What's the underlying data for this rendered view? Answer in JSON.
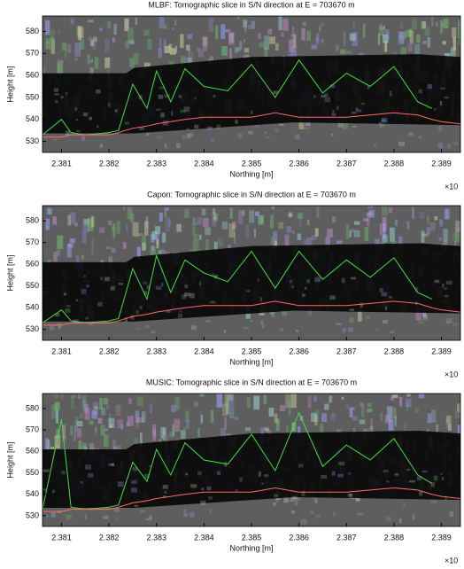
{
  "chart_data": [
    {
      "type": "line",
      "title": "MLBF: Tomographic slice in S/N direction at E = 703670 m",
      "x_label": "Northing [m]",
      "y_label": "Height [m]",
      "x_exponent_label": "×10",
      "x": [
        2.3806,
        2.381,
        2.3812,
        2.3815,
        2.382,
        2.3822,
        2.3825,
        2.3828,
        2.383,
        2.3833,
        2.3836,
        2.384,
        2.3845,
        2.385,
        2.3855,
        2.386,
        2.3865,
        2.387,
        2.3875,
        2.388,
        2.3885,
        2.3888,
        2.389,
        2.3894
      ],
      "series": [
        {
          "color": "#44dd44",
          "values": [
            533,
            540,
            534,
            533,
            534,
            535,
            556,
            545,
            562,
            548,
            563,
            555,
            553,
            565,
            550,
            567,
            552,
            561,
            555,
            564,
            548,
            545,
            null,
            null
          ]
        },
        {
          "color": "#ff6a6a",
          "values": [
            532,
            532,
            533,
            533,
            533,
            534,
            536,
            537,
            538,
            539,
            540,
            541,
            541,
            541,
            543,
            541,
            541,
            541,
            542,
            543,
            542,
            540,
            539,
            538
          ]
        }
      ],
      "xlim": [
        2.3806,
        2.3894
      ],
      "ylim": [
        525,
        587
      ],
      "xticks": [
        2.381,
        2.382,
        2.383,
        2.384,
        2.385,
        2.386,
        2.387,
        2.388,
        2.389
      ],
      "yticks": [
        530,
        540,
        550,
        560,
        570,
        580
      ]
    },
    {
      "type": "line",
      "title": "Capon: Tomographic slice in S/N direction at E = 703670 m",
      "x_label": "Northing [m]",
      "y_label": "Height [m]",
      "x_exponent_label": "×10",
      "x": [
        2.3806,
        2.381,
        2.3812,
        2.3815,
        2.382,
        2.3822,
        2.3825,
        2.3828,
        2.383,
        2.3833,
        2.3836,
        2.384,
        2.3845,
        2.385,
        2.3855,
        2.386,
        2.3865,
        2.387,
        2.3875,
        2.388,
        2.3885,
        2.3888,
        2.389,
        2.3894
      ],
      "series": [
        {
          "color": "#44dd44",
          "values": [
            533,
            539,
            534,
            533,
            534,
            535,
            558,
            544,
            564,
            547,
            562,
            556,
            552,
            566,
            549,
            566,
            553,
            562,
            554,
            563,
            547,
            544,
            null,
            null
          ]
        },
        {
          "color": "#ff6a6a",
          "values": [
            532,
            532,
            533,
            533,
            533,
            534,
            536,
            537,
            538,
            539,
            540,
            541,
            541,
            541,
            543,
            541,
            541,
            541,
            542,
            543,
            542,
            540,
            539,
            538
          ]
        }
      ],
      "xlim": [
        2.3806,
        2.3894
      ],
      "ylim": [
        525,
        587
      ],
      "xticks": [
        2.381,
        2.382,
        2.383,
        2.384,
        2.385,
        2.386,
        2.387,
        2.388,
        2.389
      ],
      "yticks": [
        530,
        540,
        550,
        560,
        570,
        580
      ]
    },
    {
      "type": "line",
      "title": "MUSIC: Tomographic slice in S/N direction at E = 703670 m",
      "x_label": "Northing [m]",
      "y_label": "Height [m]",
      "x_exponent_label": "×10",
      "x": [
        2.3806,
        2.381,
        2.3812,
        2.3815,
        2.382,
        2.3822,
        2.3825,
        2.3828,
        2.383,
        2.3833,
        2.3836,
        2.384,
        2.3845,
        2.385,
        2.3855,
        2.386,
        2.3865,
        2.387,
        2.3875,
        2.388,
        2.3885,
        2.3888,
        2.389,
        2.3894
      ],
      "series": [
        {
          "color": "#44dd44",
          "values": [
            533,
            575,
            534,
            533,
            534,
            535,
            555,
            546,
            561,
            549,
            564,
            556,
            554,
            568,
            551,
            578,
            553,
            563,
            556,
            566,
            549,
            545,
            null,
            null
          ]
        },
        {
          "color": "#ff6a6a",
          "values": [
            532,
            532,
            533,
            533,
            533,
            534,
            536,
            537,
            538,
            539,
            540,
            541,
            541,
            541,
            543,
            541,
            541,
            541,
            542,
            543,
            542,
            540,
            539,
            538
          ]
        }
      ],
      "xlim": [
        2.3806,
        2.3894
      ],
      "ylim": [
        525,
        587
      ],
      "xticks": [
        2.381,
        2.382,
        2.383,
        2.384,
        2.385,
        2.386,
        2.387,
        2.388,
        2.389
      ],
      "yticks": [
        530,
        540,
        550,
        560,
        570,
        580
      ]
    }
  ]
}
